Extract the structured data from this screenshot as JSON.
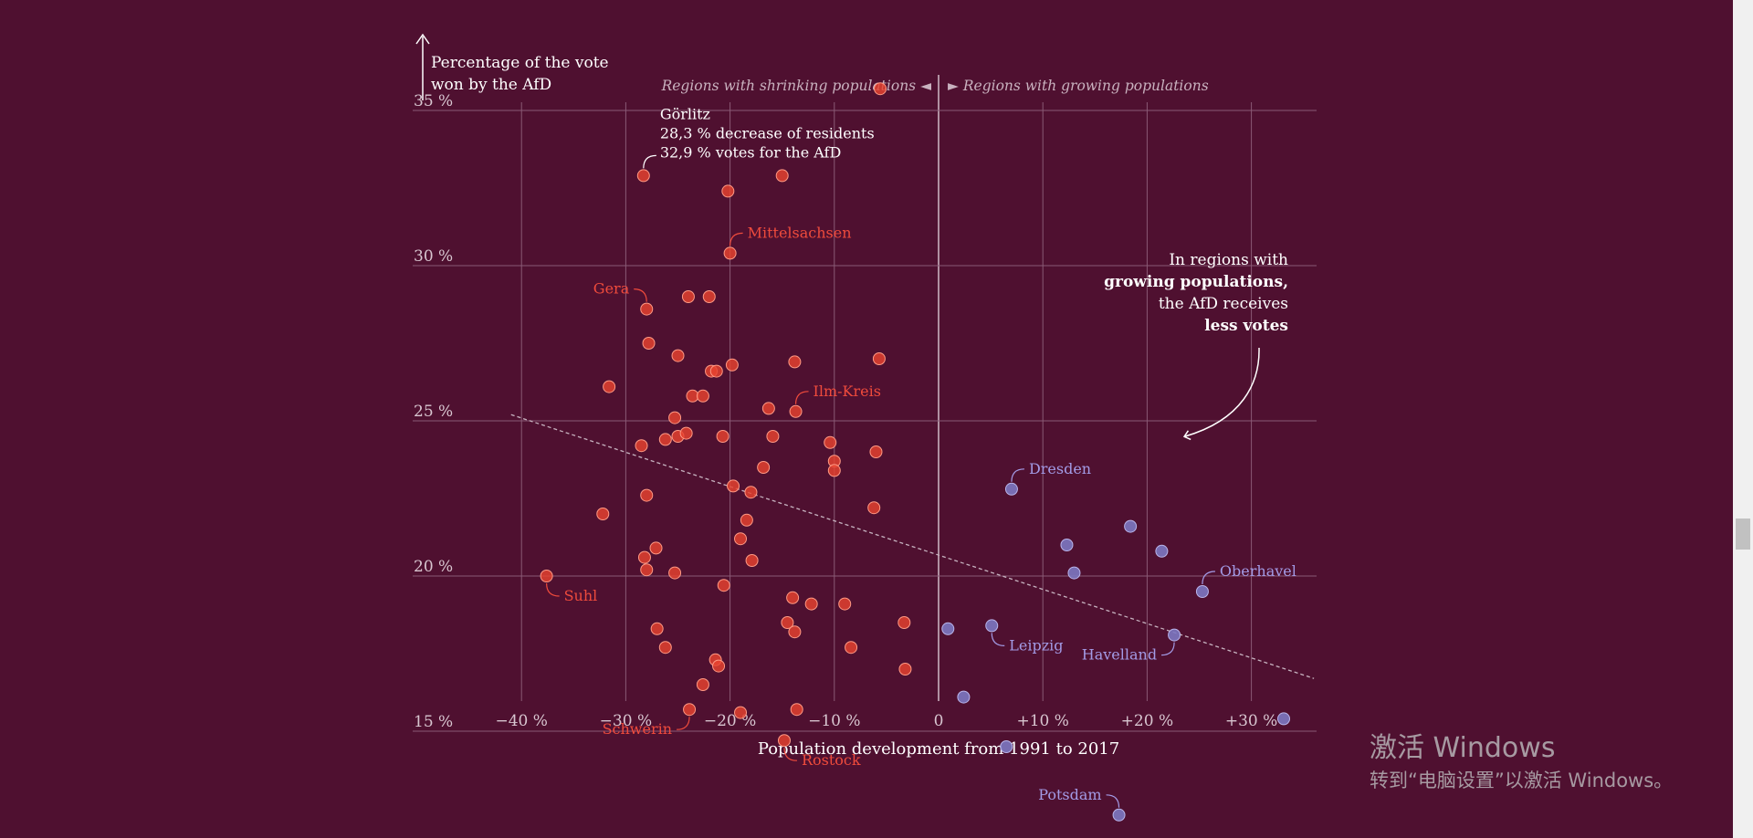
{
  "chart_data": {
    "type": "scatter",
    "y_axis_label_line1": "Percentage of the vote",
    "y_axis_label_line2": "won by the AfD",
    "x_axis_label": "Population development from 1991 to 2017",
    "region_left_label": "Regions with shrinking populations ◄",
    "region_right_label": "► Regions with growing populations",
    "xlim": [
      -40,
      36
    ],
    "ylim": [
      12.5,
      36
    ],
    "x_ticks": [
      {
        "value": -40,
        "label": "−40 %"
      },
      {
        "value": -30,
        "label": "−30 %"
      },
      {
        "value": -20,
        "label": "−20 %"
      },
      {
        "value": -10,
        "label": "−10 %"
      },
      {
        "value": 0,
        "label": "0"
      },
      {
        "value": 10,
        "label": "+10 %"
      },
      {
        "value": 20,
        "label": "+20 %"
      },
      {
        "value": 30,
        "label": "+30 %"
      }
    ],
    "y_ticks": [
      {
        "value": 35,
        "label": "35 %"
      },
      {
        "value": 30,
        "label": "30 %"
      },
      {
        "value": 25,
        "label": "25 %"
      },
      {
        "value": 20,
        "label": "20 %"
      },
      {
        "value": 15,
        "label": "15 %"
      }
    ],
    "grid": true,
    "colors": {
      "background": "#4f1030",
      "shrinking": "#e8432f",
      "growing": "#7c78c2",
      "grid": "#8a5a76",
      "trend": "#c7b3c0"
    },
    "trend_line": {
      "x": [
        -41,
        36
      ],
      "y": [
        25.2,
        16.7
      ]
    },
    "series": [
      {
        "group": "shrinking",
        "points": [
          {
            "x": -28.3,
            "y": 32.9
          },
          {
            "x": -20.2,
            "y": 32.4
          },
          {
            "x": -15.0,
            "y": 32.9
          },
          {
            "x": -5.6,
            "y": 35.7
          },
          {
            "x": -20.0,
            "y": 30.4
          },
          {
            "x": -28.0,
            "y": 28.6
          },
          {
            "x": -24.0,
            "y": 29.0
          },
          {
            "x": -22.0,
            "y": 29.0
          },
          {
            "x": -27.8,
            "y": 27.5
          },
          {
            "x": -25.0,
            "y": 27.1
          },
          {
            "x": -21.8,
            "y": 26.6
          },
          {
            "x": -21.3,
            "y": 26.6
          },
          {
            "x": -19.8,
            "y": 26.8
          },
          {
            "x": -13.8,
            "y": 26.9
          },
          {
            "x": -5.7,
            "y": 27.0
          },
          {
            "x": -31.6,
            "y": 26.1
          },
          {
            "x": -23.6,
            "y": 25.8
          },
          {
            "x": -22.6,
            "y": 25.8
          },
          {
            "x": -16.3,
            "y": 25.4
          },
          {
            "x": -13.7,
            "y": 25.3
          },
          {
            "x": -25.3,
            "y": 25.1
          },
          {
            "x": -26.2,
            "y": 24.4
          },
          {
            "x": -25.0,
            "y": 24.5
          },
          {
            "x": -24.2,
            "y": 24.6
          },
          {
            "x": -20.7,
            "y": 24.5
          },
          {
            "x": -15.9,
            "y": 24.5
          },
          {
            "x": -10.4,
            "y": 24.3
          },
          {
            "x": -6.0,
            "y": 24.0
          },
          {
            "x": -28.5,
            "y": 24.2
          },
          {
            "x": -10.0,
            "y": 23.7
          },
          {
            "x": -10.0,
            "y": 23.4
          },
          {
            "x": -16.8,
            "y": 23.5
          },
          {
            "x": -19.7,
            "y": 22.9
          },
          {
            "x": -18.0,
            "y": 22.7
          },
          {
            "x": -28.0,
            "y": 22.6
          },
          {
            "x": -32.2,
            "y": 22.0
          },
          {
            "x": -6.2,
            "y": 22.2
          },
          {
            "x": -18.4,
            "y": 21.8
          },
          {
            "x": -19.0,
            "y": 21.2
          },
          {
            "x": -27.1,
            "y": 20.9
          },
          {
            "x": -28.2,
            "y": 20.6
          },
          {
            "x": -28.0,
            "y": 20.2
          },
          {
            "x": -17.9,
            "y": 20.5
          },
          {
            "x": -25.3,
            "y": 20.1
          },
          {
            "x": -37.6,
            "y": 20.0
          },
          {
            "x": -20.6,
            "y": 19.7
          },
          {
            "x": -14.0,
            "y": 19.3
          },
          {
            "x": -12.2,
            "y": 19.1
          },
          {
            "x": -9.0,
            "y": 19.1
          },
          {
            "x": -3.3,
            "y": 18.5
          },
          {
            "x": -14.5,
            "y": 18.5
          },
          {
            "x": -13.8,
            "y": 18.2
          },
          {
            "x": -27.0,
            "y": 18.3
          },
          {
            "x": -26.2,
            "y": 17.7
          },
          {
            "x": -8.4,
            "y": 17.7
          },
          {
            "x": -21.4,
            "y": 17.3
          },
          {
            "x": -21.1,
            "y": 17.1
          },
          {
            "x": -3.2,
            "y": 17.0
          },
          {
            "x": -22.6,
            "y": 16.5
          },
          {
            "x": -23.9,
            "y": 15.7
          },
          {
            "x": -19.0,
            "y": 15.6
          },
          {
            "x": -13.6,
            "y": 15.7
          },
          {
            "x": -14.8,
            "y": 14.7
          }
        ]
      },
      {
        "group": "growing",
        "points": [
          {
            "x": 7.0,
            "y": 22.8
          },
          {
            "x": 12.3,
            "y": 21.0
          },
          {
            "x": 18.4,
            "y": 21.6
          },
          {
            "x": 21.4,
            "y": 20.8
          },
          {
            "x": 13.0,
            "y": 20.1
          },
          {
            "x": 25.3,
            "y": 19.5
          },
          {
            "x": 0.9,
            "y": 18.3
          },
          {
            "x": 5.1,
            "y": 18.4
          },
          {
            "x": 22.6,
            "y": 18.1
          },
          {
            "x": 2.4,
            "y": 16.1
          },
          {
            "x": 6.5,
            "y": 14.5
          },
          {
            "x": 33.1,
            "y": 15.4
          },
          {
            "x": 17.3,
            "y": 12.3
          }
        ]
      }
    ],
    "labeled_points": [
      {
        "name": "Mittelsachsen",
        "group": "shrinking",
        "x": -20.0,
        "y": 30.4,
        "anchor": "right-up"
      },
      {
        "name": "Gera",
        "group": "shrinking",
        "x": -28.0,
        "y": 28.6,
        "anchor": "left-up"
      },
      {
        "name": "Ilm-Kreis",
        "group": "shrinking",
        "x": -13.7,
        "y": 25.3,
        "anchor": "right-up"
      },
      {
        "name": "Suhl",
        "group": "shrinking",
        "x": -37.6,
        "y": 20.0,
        "anchor": "right-down"
      },
      {
        "name": "Schwerin",
        "group": "shrinking",
        "x": -23.9,
        "y": 15.7,
        "anchor": "left-down"
      },
      {
        "name": "Rostock",
        "group": "shrinking",
        "x": -14.8,
        "y": 14.7,
        "anchor": "right-down"
      },
      {
        "name": "Dresden",
        "group": "growing",
        "x": 7.0,
        "y": 22.8,
        "anchor": "right-up"
      },
      {
        "name": "Oberhavel",
        "group": "growing",
        "x": 25.3,
        "y": 19.5,
        "anchor": "right-up"
      },
      {
        "name": "Leipzig",
        "group": "growing",
        "x": 5.1,
        "y": 18.4,
        "anchor": "right-down"
      },
      {
        "name": "Havelland",
        "group": "growing",
        "x": 22.6,
        "y": 18.1,
        "anchor": "left-down"
      },
      {
        "name": "Potsdam",
        "group": "growing",
        "x": 17.3,
        "y": 12.3,
        "anchor": "left-up"
      }
    ],
    "annotation_goerlitz": {
      "x": -28.3,
      "y": 32.9,
      "line1": "Görlitz",
      "line2": "28,3 % decrease of residents",
      "line3": "32,9 % votes for the AfD"
    },
    "insight": {
      "line1": "In regions with",
      "line2": "growing populations,",
      "line3": "the AfD receives",
      "line4": "less votes"
    }
  },
  "watermark": {
    "title": "激活 Windows",
    "subtitle": "转到“电脑设置”以激活 Windows。"
  }
}
